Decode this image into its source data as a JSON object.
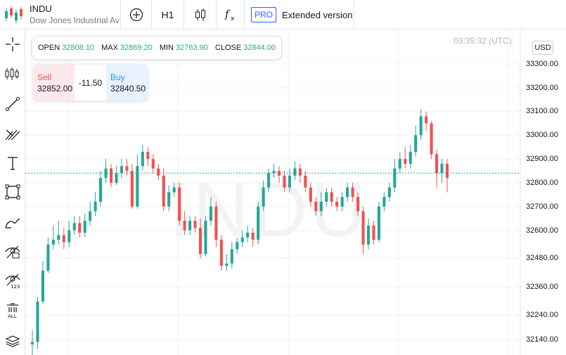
{
  "symbol": {
    "ticker": "INDU",
    "name": "Dow Jones Industrial Avera"
  },
  "toolbar": {
    "add_icon": "plus-circle-icon",
    "timeframe": "H1",
    "chart_type_icon": "candles-icon",
    "indicators_icon": "fx-icon",
    "pro_badge": "PRO",
    "extended_label": "Extended version"
  },
  "left_tools": [
    "crosshair-icon",
    "candles-icon",
    "trend-line-icon",
    "pitchfork-icon",
    "text-icon",
    "rectangle-icon",
    "brush-icon",
    "hide-drawings-icon",
    "hide-indicators-icon",
    "delete-all-icon",
    "layers-icon"
  ],
  "ohlc": {
    "open_label": "OPEN",
    "open": "32808.10",
    "max_label": "MAX",
    "max": "32869.20",
    "min_label": "MIN",
    "min": "32763.90",
    "close_label": "CLOSE",
    "close": "32844.00"
  },
  "trade": {
    "sell_label": "Sell",
    "sell_price": "32852.00",
    "spread": "-11.50",
    "buy_label": "Buy",
    "buy_price": "32840.50"
  },
  "server_time": "03:35:32 (UTC)",
  "currency": "USD",
  "watermark": "INDU",
  "colors": {
    "up": "#26a69a",
    "down": "#ef5350",
    "accent": "#2962ff"
  },
  "chart_data": {
    "type": "candlestick",
    "y_tick_labels": [
      "33300.00",
      "33200.00",
      "33100.00",
      "33000.00",
      "32900.00",
      "32800.00",
      "32700.00",
      "32600.00",
      "32480.00",
      "32360.00",
      "32240.00",
      "32140.00"
    ],
    "ylim": [
      32140,
      33340
    ],
    "price_line": 32840.5,
    "grid": true,
    "candles": [
      [
        32120,
        32130,
        32180,
        32060
      ],
      [
        32130,
        32300,
        32320,
        32100
      ],
      [
        32300,
        32430,
        32470,
        32290
      ],
      [
        32430,
        32540,
        32570,
        32420
      ],
      [
        32540,
        32560,
        32620,
        32520
      ],
      [
        32560,
        32580,
        32640,
        32540
      ],
      [
        32580,
        32550,
        32610,
        32520
      ],
      [
        32550,
        32600,
        32640,
        32530
      ],
      [
        32600,
        32630,
        32660,
        32580
      ],
      [
        32630,
        32590,
        32660,
        32570
      ],
      [
        32590,
        32640,
        32670,
        32570
      ],
      [
        32640,
        32680,
        32720,
        32620
      ],
      [
        32680,
        32720,
        32760,
        32660
      ],
      [
        32720,
        32820,
        32850,
        32700
      ],
      [
        32820,
        32860,
        32900,
        32800
      ],
      [
        32860,
        32800,
        32880,
        32780
      ],
      [
        32800,
        32840,
        32870,
        32790
      ],
      [
        32840,
        32870,
        32900,
        32820
      ],
      [
        32870,
        32850,
        32900,
        32830
      ],
      [
        32850,
        32700,
        32880,
        32690
      ],
      [
        32700,
        32870,
        32920,
        32690
      ],
      [
        32870,
        32930,
        32960,
        32850
      ],
      [
        32930,
        32900,
        32950,
        32870
      ],
      [
        32900,
        32860,
        32920,
        32840
      ],
      [
        32860,
        32830,
        32880,
        32810
      ],
      [
        32830,
        32700,
        32860,
        32680
      ],
      [
        32700,
        32760,
        32790,
        32680
      ],
      [
        32760,
        32780,
        32800,
        32740
      ],
      [
        32780,
        32640,
        32800,
        32620
      ],
      [
        32640,
        32600,
        32680,
        32580
      ],
      [
        32600,
        32640,
        32660,
        32580
      ],
      [
        32640,
        32610,
        32660,
        32590
      ],
      [
        32610,
        32500,
        32650,
        32480
      ],
      [
        32500,
        32640,
        32660,
        32490
      ],
      [
        32640,
        32700,
        32740,
        32620
      ],
      [
        32700,
        32560,
        32720,
        32530
      ],
      [
        32560,
        32450,
        32580,
        32430
      ],
      [
        32450,
        32460,
        32500,
        32430
      ],
      [
        32460,
        32520,
        32550,
        32440
      ],
      [
        32520,
        32550,
        32570,
        32500
      ],
      [
        32550,
        32570,
        32600,
        32530
      ],
      [
        32570,
        32590,
        32620,
        32550
      ],
      [
        32590,
        32560,
        32610,
        32530
      ],
      [
        32560,
        32700,
        32720,
        32540
      ],
      [
        32700,
        32780,
        32810,
        32680
      ],
      [
        32780,
        32840,
        32860,
        32760
      ],
      [
        32840,
        32850,
        32880,
        32820
      ],
      [
        32850,
        32830,
        32870,
        32800
      ],
      [
        32830,
        32780,
        32850,
        32760
      ],
      [
        32780,
        32830,
        32860,
        32760
      ],
      [
        32830,
        32860,
        32890,
        32810
      ],
      [
        32860,
        32830,
        32880,
        32800
      ],
      [
        32830,
        32780,
        32850,
        32760
      ],
      [
        32780,
        32720,
        32800,
        32700
      ],
      [
        32720,
        32680,
        32740,
        32660
      ],
      [
        32680,
        32720,
        32760,
        32660
      ],
      [
        32720,
        32760,
        32780,
        32700
      ],
      [
        32760,
        32720,
        32780,
        32700
      ],
      [
        32720,
        32700,
        32740,
        32680
      ],
      [
        32700,
        32740,
        32760,
        32680
      ],
      [
        32740,
        32780,
        32800,
        32720
      ],
      [
        32780,
        32740,
        32800,
        32720
      ],
      [
        32740,
        32680,
        32760,
        32660
      ],
      [
        32680,
        32540,
        32700,
        32500
      ],
      [
        32540,
        32620,
        32650,
        32520
      ],
      [
        32620,
        32560,
        32640,
        32540
      ],
      [
        32560,
        32700,
        32720,
        32550
      ],
      [
        32700,
        32740,
        32760,
        32680
      ],
      [
        32740,
        32780,
        32800,
        32720
      ],
      [
        32780,
        32860,
        32900,
        32760
      ],
      [
        32860,
        32900,
        32930,
        32840
      ],
      [
        32900,
        32880,
        32950,
        32860
      ],
      [
        32880,
        32930,
        32960,
        32860
      ],
      [
        32930,
        33000,
        33040,
        32910
      ],
      [
        33000,
        33080,
        33110,
        32980
      ],
      [
        33080,
        33050,
        33100,
        33020
      ],
      [
        33050,
        32920,
        33060,
        32900
      ],
      [
        32920,
        32840,
        32940,
        32780
      ],
      [
        32840,
        32880,
        32900,
        32800
      ],
      [
        32880,
        32820,
        32900,
        32760
      ]
    ]
  }
}
